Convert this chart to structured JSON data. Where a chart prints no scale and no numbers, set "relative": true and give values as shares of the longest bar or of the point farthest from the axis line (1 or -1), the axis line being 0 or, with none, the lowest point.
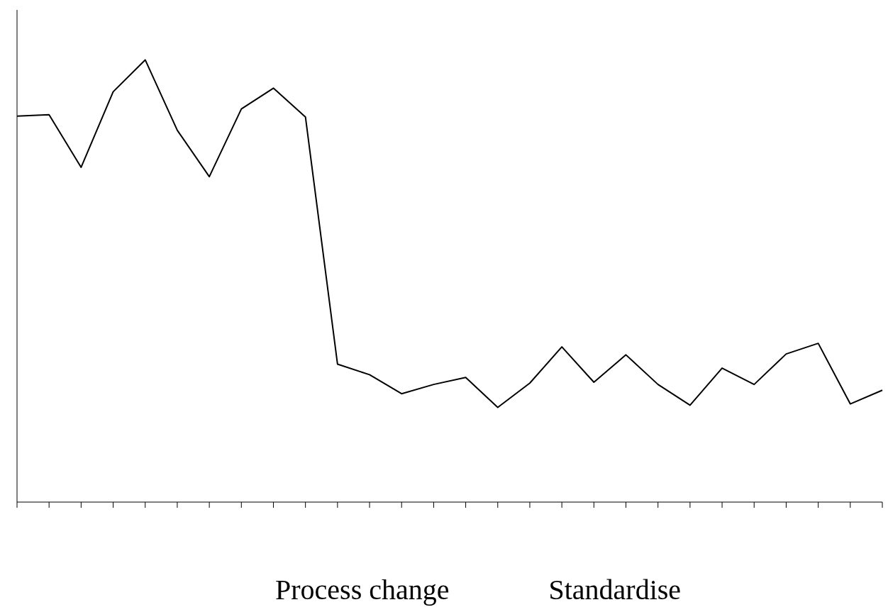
{
  "chart_data": {
    "type": "line",
    "relative": true,
    "categories": [
      null,
      null,
      null,
      null,
      null,
      null,
      null,
      null,
      null,
      null,
      null,
      null,
      null,
      null,
      null,
      null,
      null,
      null,
      null,
      null,
      null,
      null,
      null,
      null,
      null,
      null,
      null,
      null
    ],
    "series": [
      {
        "color": "#000000",
        "values": [
          0.873,
          0.876,
          0.757,
          0.928,
          1,
          0.841,
          0.736,
          0.889,
          0.936,
          0.871,
          0.312,
          0.288,
          0.245,
          0.266,
          0.282,
          0.214,
          0.269,
          0.351,
          0.271,
          0.333,
          0.266,
          0.219,
          0.303,
          0.266,
          0.335,
          0.359,
          0.222,
          0.253
        ]
      }
    ],
    "annotations": [
      "Process change",
      "Standardise"
    ],
    "grid": false,
    "legend": false,
    "marker": "none",
    "line_style": "solid"
  }
}
